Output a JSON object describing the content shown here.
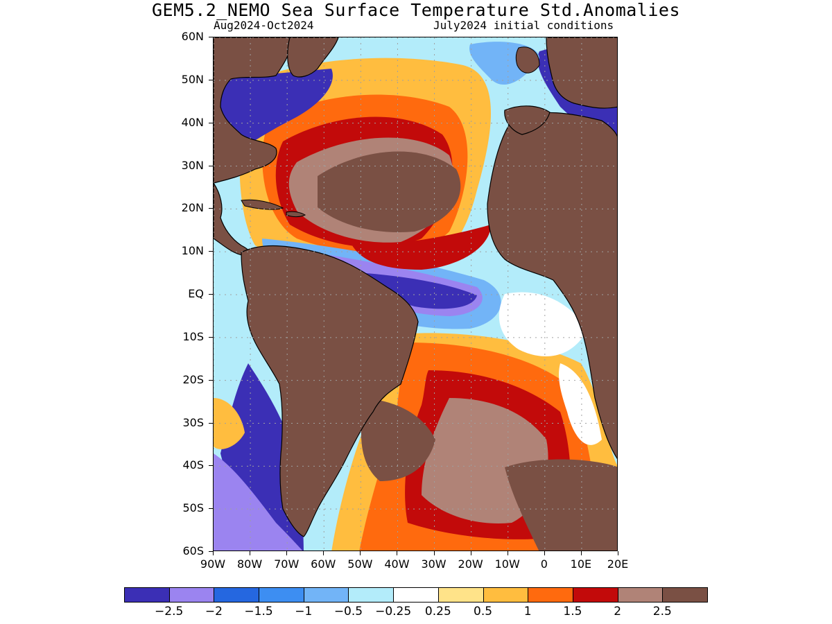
{
  "title": "GEM5.2_NEMO Sea Surface Temperature Std.Anomalies",
  "subtitle_left": "Aug2024-Oct2024",
  "subtitle_right": "July2024 initial conditions",
  "colors": {
    "land": "#7a5044",
    "coast": "#000000",
    "grid": "#a0a0a0"
  },
  "map": {
    "lon_range": [
      -90,
      20
    ],
    "lat_range": [
      -60,
      60
    ],
    "lat_labels": [
      "60N",
      "50N",
      "40N",
      "30N",
      "20N",
      "10N",
      "EQ",
      "10S",
      "20S",
      "30S",
      "40S",
      "50S",
      "60S"
    ],
    "lat_values": [
      60,
      50,
      40,
      30,
      20,
      10,
      0,
      -10,
      -20,
      -30,
      -40,
      -50,
      -60
    ],
    "lon_labels": [
      "90W",
      "80W",
      "70W",
      "60W",
      "50W",
      "40W",
      "30W",
      "20W",
      "10W",
      "0",
      "10E",
      "20E"
    ],
    "lon_values": [
      -90,
      -80,
      -70,
      -60,
      -50,
      -40,
      -30,
      -20,
      -10,
      0,
      10,
      20
    ]
  },
  "colorbar": {
    "colors": [
      "#3b2fb5",
      "#9b84f0",
      "#2567e0",
      "#3d8ef2",
      "#72b4f7",
      "#b3ecfa",
      "#ffffff",
      "#ffe389",
      "#ffbd3f",
      "#ff6a0e",
      "#c20a0a",
      "#b08377",
      "#7a5044"
    ],
    "labels": [
      "-2.5",
      "-2",
      "-1.5",
      "-1",
      "-0.5",
      "-0.25",
      "0.25",
      "0.5",
      "1",
      "1.5",
      "2",
      "2.5"
    ]
  },
  "anomaly_fields": [
    {
      "level": "1",
      "color": "#ffbd3f",
      "regions": "subtropical-north-atlantic"
    },
    {
      "level": "2",
      "color": "#c20a0a",
      "regions": "north-atlantic-gulfstream"
    },
    {
      "level": "-2.5",
      "color": "#3b2fb5",
      "regions": "equatorial-atlantic"
    }
  ]
}
